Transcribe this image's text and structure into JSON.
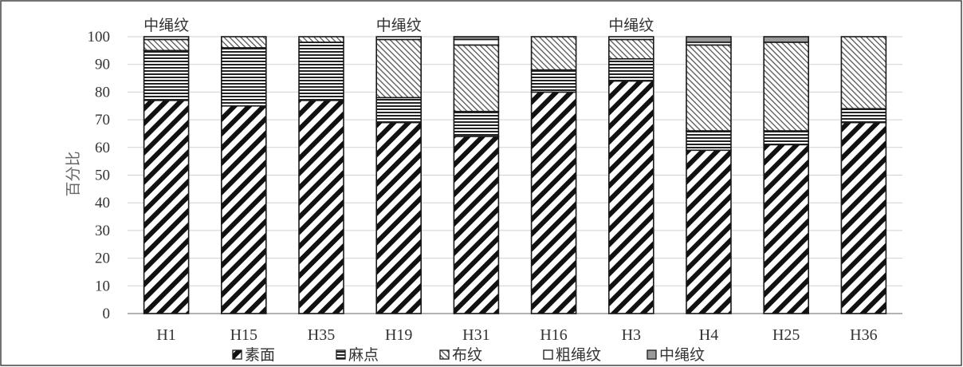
{
  "chart_data": {
    "type": "bar",
    "stacked": true,
    "categories": [
      "H1",
      "H15",
      "H35",
      "H19",
      "H31",
      "H16",
      "H3",
      "H4",
      "H25",
      "H36"
    ],
    "series": [
      {
        "name": "素面",
        "values": [
          77,
          75,
          77,
          69,
          64,
          80,
          84,
          59,
          61,
          69
        ],
        "pattern": "diagonal-bold",
        "color": "#111111"
      },
      {
        "name": "麻点",
        "values": [
          18,
          21,
          21,
          9,
          9,
          8,
          8,
          7,
          5,
          5
        ],
        "pattern": "horizontal-lines",
        "color": "#222222"
      },
      {
        "name": "布纹",
        "values": [
          4,
          4,
          2,
          21,
          24,
          12,
          7,
          31,
          32,
          26
        ],
        "pattern": "crosshatch-fine",
        "color": "#666666"
      },
      {
        "name": "粗绳纹",
        "values": [
          1,
          0,
          0,
          1,
          2,
          0,
          1,
          1,
          0,
          0
        ],
        "pattern": "solid-white",
        "color": "#ffffff"
      },
      {
        "name": "中绳纹",
        "values": [
          0,
          0,
          0,
          0,
          1,
          0,
          0,
          2,
          2,
          0
        ],
        "pattern": "solid-gray",
        "color": "#999999"
      }
    ],
    "xlabel": "",
    "ylabel": "百分比",
    "ylim": [
      0,
      100
    ],
    "yticks": [
      0,
      10,
      20,
      30,
      40,
      50,
      60,
      70,
      80,
      90,
      100
    ],
    "grid": true,
    "legend_position": "bottom",
    "annotations": [
      {
        "text": "中绳纹",
        "category": "H1"
      },
      {
        "text": "中绳纹",
        "category": "H19"
      },
      {
        "text": "中绳纹",
        "category": "H3"
      }
    ]
  }
}
